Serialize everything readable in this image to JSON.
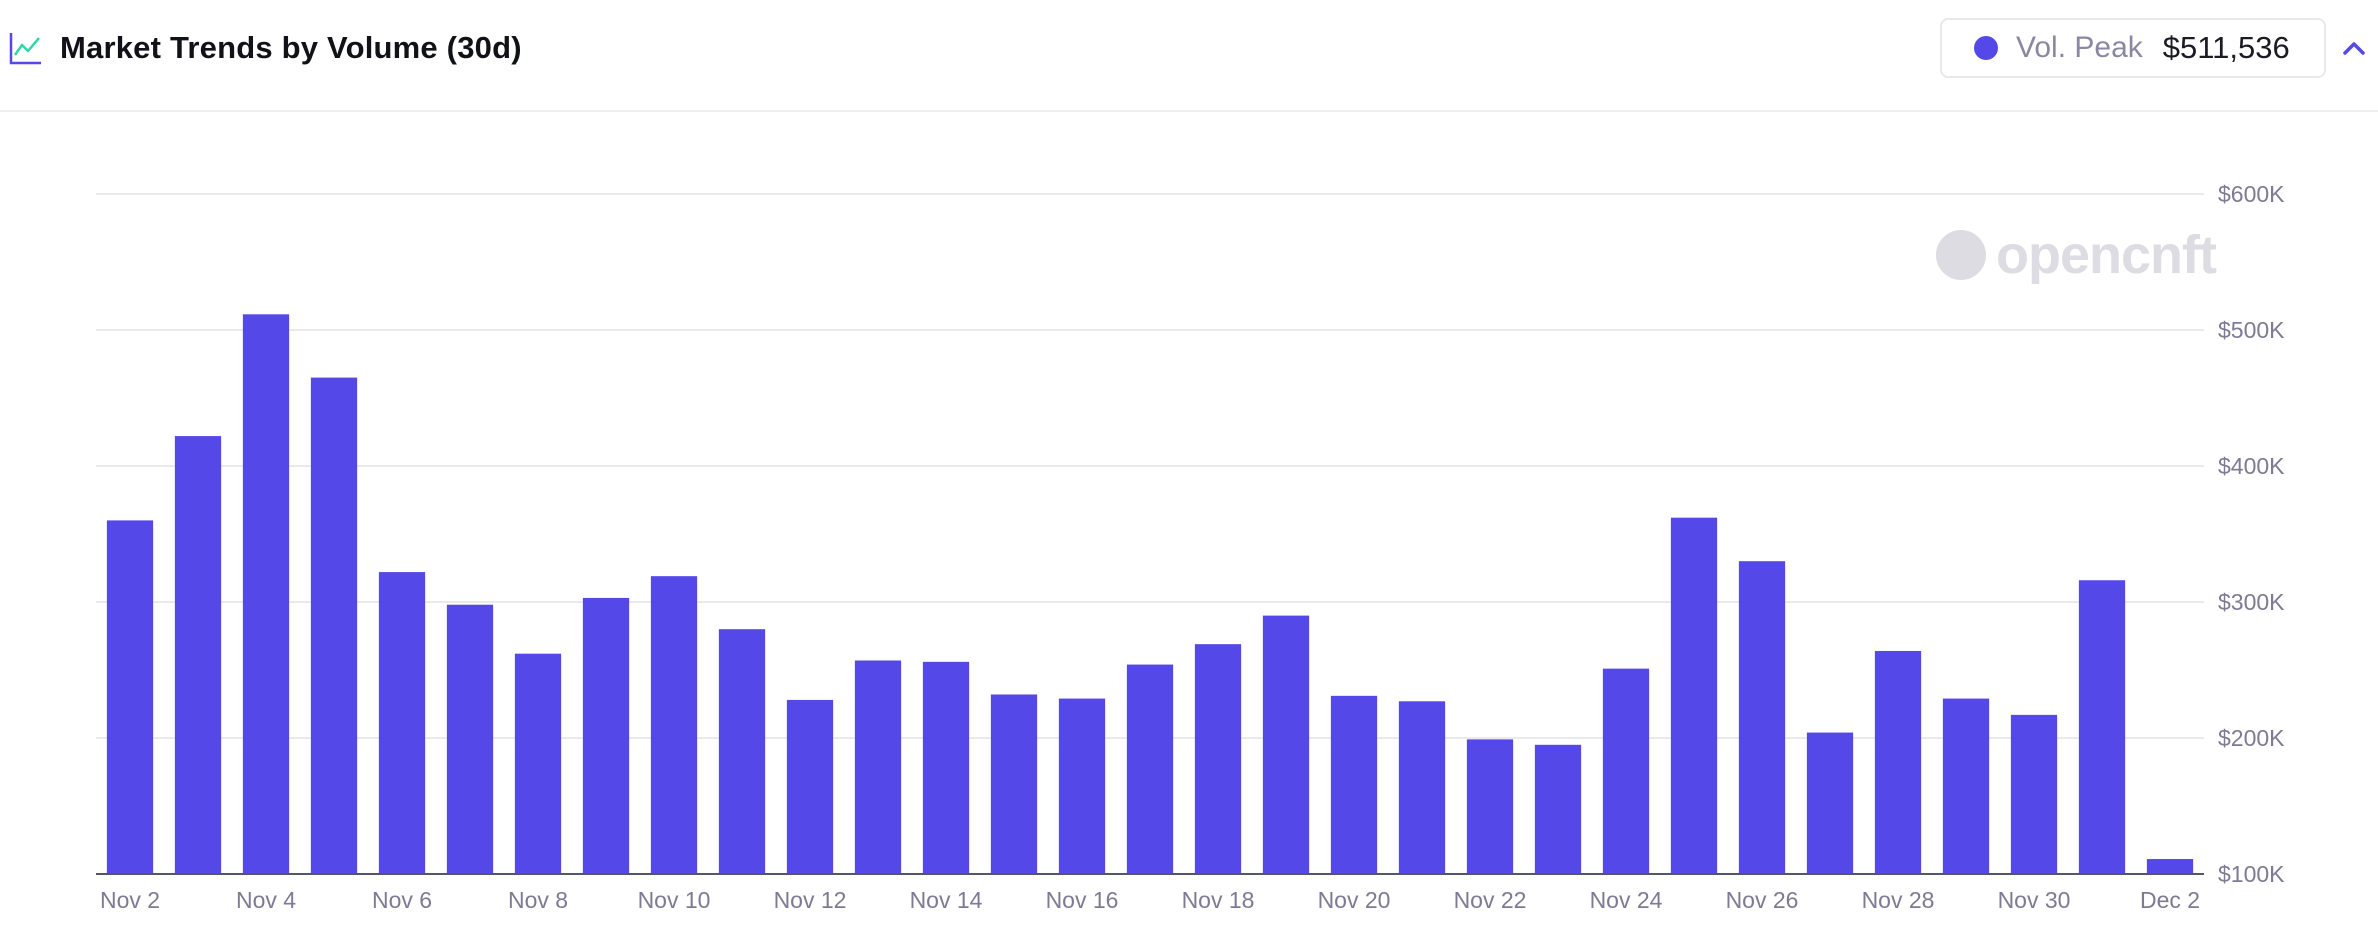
{
  "header": {
    "title": "Market Trends by Volume (30d)",
    "icon": "line-chart-icon"
  },
  "legend": {
    "label": "Vol. Peak",
    "value": "$511,536",
    "color": "#5548e8"
  },
  "collapse": {
    "icon": "chevron-up-icon"
  },
  "watermark": {
    "text": "opencnft"
  },
  "chart_data": {
    "type": "bar",
    "categories": [
      "Nov 2",
      "Nov 3",
      "Nov 4",
      "Nov 5",
      "Nov 6",
      "Nov 7",
      "Nov 8",
      "Nov 9",
      "Nov 10",
      "Nov 11",
      "Nov 12",
      "Nov 13",
      "Nov 14",
      "Nov 15",
      "Nov 16",
      "Nov 17",
      "Nov 18",
      "Nov 19",
      "Nov 20",
      "Nov 21",
      "Nov 22",
      "Nov 23",
      "Nov 24",
      "Nov 25",
      "Nov 26",
      "Nov 27",
      "Nov 28",
      "Nov 29",
      "Nov 30",
      "Dec 1",
      "Dec 2"
    ],
    "x_tick_labels": [
      "Nov 2",
      "Nov 4",
      "Nov 6",
      "Nov 8",
      "Nov 10",
      "Nov 12",
      "Nov 14",
      "Nov 16",
      "Nov 18",
      "Nov 20",
      "Nov 22",
      "Nov 24",
      "Nov 26",
      "Nov 28",
      "Nov 30",
      "Dec 2"
    ],
    "values": [
      360000,
      422000,
      511536,
      465000,
      322000,
      298000,
      262000,
      303000,
      319000,
      280000,
      228000,
      257000,
      256000,
      232000,
      229000,
      254000,
      269000,
      290000,
      231000,
      227000,
      199000,
      195000,
      251000,
      362000,
      330000,
      204000,
      264000,
      229000,
      217000,
      316000,
      111000
    ],
    "y_tick_labels": [
      "$600K",
      "$500K",
      "$400K",
      "$300K",
      "$200K",
      "$100K"
    ],
    "y_ticks": [
      600000,
      500000,
      400000,
      300000,
      200000,
      100000
    ],
    "ylim": [
      100000,
      600000
    ],
    "grid": true,
    "legend_position": "top-right",
    "bar_color": "#5548e8",
    "grid_color": "#e2e2e8",
    "axis_color": "#55556a"
  }
}
